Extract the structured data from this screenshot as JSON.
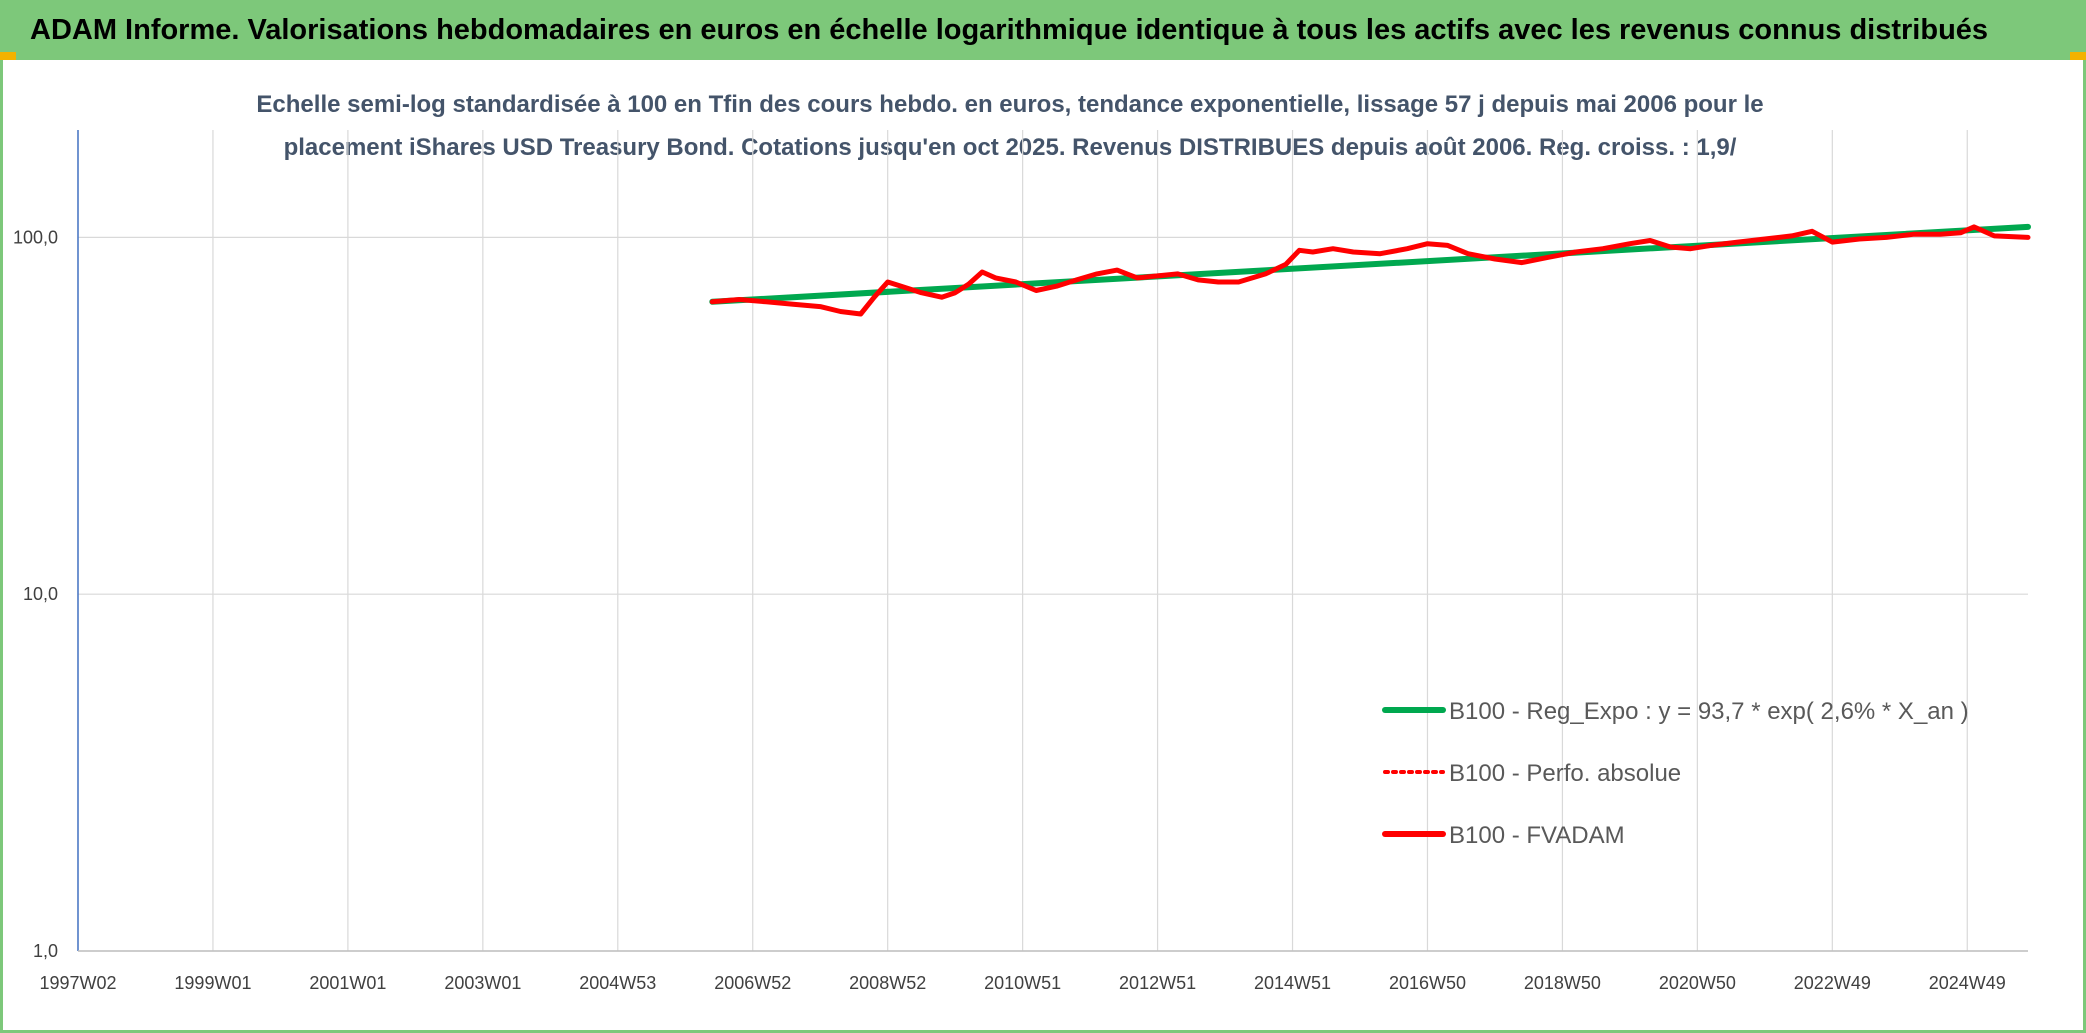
{
  "header": {
    "banner_title": "ADAM Informe. Valorisations hebdomadaires en euros en échelle logarithmique identique à tous les actifs avec les revenus connus distribués"
  },
  "colors": {
    "banner": "#7dc87a",
    "corner_marks": "#f3b200",
    "regression": "#00a84f",
    "fvadam": "#ff0000",
    "perfo": "#ff0000",
    "grid": "#d9d9d9",
    "axis": "#4472c4"
  },
  "chart_data": {
    "type": "line",
    "title_lines": [
      "Echelle semi-log standardisée à 100 en Tfin des cours hebdo. en euros, tendance exponentielle, lissage 57 j depuis mai 2006 pour le",
      "placement iShares USD Treasury Bond. Cotations jusqu'en oct 2025. Revenus DISTRIBUES depuis août 2006. Reg. croiss. : 1,9/"
    ],
    "y_scale": "log",
    "ylim": [
      1,
      200
    ],
    "y_ticks": [
      1,
      10,
      100
    ],
    "y_tick_labels": [
      "1,0",
      "10,0",
      "100,0"
    ],
    "x_range_years": [
      1997.0,
      2025.9
    ],
    "x_ticks": [
      {
        "label": "1997W02",
        "year": 1997.0
      },
      {
        "label": "1999W01",
        "year": 1999.0
      },
      {
        "label": "2001W01",
        "year": 2001.0
      },
      {
        "label": "2003W01",
        "year": 2003.0
      },
      {
        "label": "2004W53",
        "year": 2005.0
      },
      {
        "label": "2006W52",
        "year": 2007.0
      },
      {
        "label": "2008W52",
        "year": 2009.0
      },
      {
        "label": "2010W51",
        "year": 2011.0
      },
      {
        "label": "2012W51",
        "year": 2013.0
      },
      {
        "label": "2014W51",
        "year": 2015.0
      },
      {
        "label": "2016W50",
        "year": 2017.0
      },
      {
        "label": "2018W50",
        "year": 2019.0
      },
      {
        "label": "2020W50",
        "year": 2021.0
      },
      {
        "label": "2022W49",
        "year": 2023.0
      },
      {
        "label": "2024W49",
        "year": 2025.0
      }
    ],
    "legend_placement": "bottom-right",
    "series": [
      {
        "name": "B100 - Reg_Expo : y = 93,7 * exp( 2,6% *  X_an )",
        "style": "solid-thick",
        "x": [
          2006.4,
          2025.9
        ],
        "values": [
          66,
          107
        ]
      },
      {
        "name": "B100 - Perfo. absolue",
        "style": "dotted",
        "x": [],
        "values": []
      },
      {
        "name": "B100 - FVADAM",
        "style": "solid",
        "x": [
          2006.4,
          2006.8,
          2007.2,
          2007.6,
          2008.0,
          2008.3,
          2008.6,
          2008.8,
          2009.0,
          2009.2,
          2009.5,
          2009.8,
          2010.0,
          2010.2,
          2010.4,
          2010.6,
          2010.9,
          2011.2,
          2011.5,
          2011.8,
          2012.1,
          2012.4,
          2012.7,
          2013.0,
          2013.3,
          2013.6,
          2013.9,
          2014.2,
          2014.6,
          2014.9,
          2015.1,
          2015.3,
          2015.6,
          2015.9,
          2016.3,
          2016.7,
          2017.0,
          2017.3,
          2017.6,
          2018.0,
          2018.4,
          2018.8,
          2019.2,
          2019.6,
          2020.0,
          2020.3,
          2020.6,
          2020.9,
          2021.2,
          2021.6,
          2022.0,
          2022.4,
          2022.7,
          2023.0,
          2023.4,
          2023.8,
          2024.2,
          2024.6,
          2024.9,
          2025.1,
          2025.4,
          2025.9
        ],
        "values": [
          66,
          67,
          66,
          65,
          64,
          62,
          61,
          68,
          75,
          73,
          70,
          68,
          70,
          74,
          80,
          77,
          75,
          71,
          73,
          76,
          79,
          81,
          77,
          78,
          79,
          76,
          75,
          75,
          79,
          84,
          92,
          91,
          93,
          91,
          90,
          93,
          96,
          95,
          90,
          87,
          85,
          88,
          91,
          93,
          96,
          98,
          94,
          93,
          95,
          97,
          99,
          101,
          104,
          97,
          99,
          100,
          102,
          102,
          103,
          107,
          101,
          100
        ]
      }
    ]
  }
}
